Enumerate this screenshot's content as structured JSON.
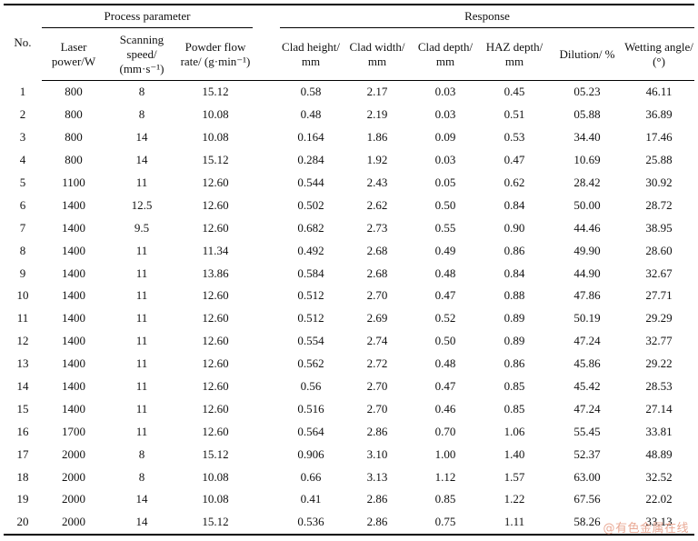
{
  "table": {
    "group_headers": {
      "process": "Process parameter",
      "response": "Response"
    },
    "columns": [
      "No.",
      "Laser power/W",
      "Scanning speed/ (mm·s⁻¹)",
      "Powder flow rate/ (g·min⁻¹)",
      "Clad height/ mm",
      "Clad width/ mm",
      "Clad depth/ mm",
      "HAZ depth/ mm",
      "Dilution/ %",
      "Wetting angle/ (°)"
    ],
    "rows": [
      [
        "1",
        "800",
        "8",
        "15.12",
        "0.58",
        "2.17",
        "0.03",
        "0.45",
        "05.23",
        "46.11"
      ],
      [
        "2",
        "800",
        "8",
        "10.08",
        "0.48",
        "2.19",
        "0.03",
        "0.51",
        "05.88",
        "36.89"
      ],
      [
        "3",
        "800",
        "14",
        "10.08",
        "0.164",
        "1.86",
        "0.09",
        "0.53",
        "34.40",
        "17.46"
      ],
      [
        "4",
        "800",
        "14",
        "15.12",
        "0.284",
        "1.92",
        "0.03",
        "0.47",
        "10.69",
        "25.88"
      ],
      [
        "5",
        "1100",
        "11",
        "12.60",
        "0.544",
        "2.43",
        "0.05",
        "0.62",
        "28.42",
        "30.92"
      ],
      [
        "6",
        "1400",
        "12.5",
        "12.60",
        "0.502",
        "2.62",
        "0.50",
        "0.84",
        "50.00",
        "28.72"
      ],
      [
        "7",
        "1400",
        "9.5",
        "12.60",
        "0.682",
        "2.73",
        "0.55",
        "0.90",
        "44.46",
        "38.95"
      ],
      [
        "8",
        "1400",
        "11",
        "11.34",
        "0.492",
        "2.68",
        "0.49",
        "0.86",
        "49.90",
        "28.60"
      ],
      [
        "9",
        "1400",
        "11",
        "13.86",
        "0.584",
        "2.68",
        "0.48",
        "0.84",
        "44.90",
        "32.67"
      ],
      [
        "10",
        "1400",
        "11",
        "12.60",
        "0.512",
        "2.70",
        "0.47",
        "0.88",
        "47.86",
        "27.71"
      ],
      [
        "11",
        "1400",
        "11",
        "12.60",
        "0.512",
        "2.69",
        "0.52",
        "0.89",
        "50.19",
        "29.29"
      ],
      [
        "12",
        "1400",
        "11",
        "12.60",
        "0.554",
        "2.74",
        "0.50",
        "0.89",
        "47.24",
        "32.77"
      ],
      [
        "13",
        "1400",
        "11",
        "12.60",
        "0.562",
        "2.72",
        "0.48",
        "0.86",
        "45.86",
        "29.22"
      ],
      [
        "14",
        "1400",
        "11",
        "12.60",
        "0.56",
        "2.70",
        "0.47",
        "0.85",
        "45.42",
        "28.53"
      ],
      [
        "15",
        "1400",
        "11",
        "12.60",
        "0.516",
        "2.70",
        "0.46",
        "0.85",
        "47.24",
        "27.14"
      ],
      [
        "16",
        "1700",
        "11",
        "12.60",
        "0.564",
        "2.86",
        "0.70",
        "1.06",
        "55.45",
        "33.81"
      ],
      [
        "17",
        "2000",
        "8",
        "15.12",
        "0.906",
        "3.10",
        "1.00",
        "1.40",
        "52.37",
        "48.89"
      ],
      [
        "18",
        "2000",
        "8",
        "10.08",
        "0.66",
        "3.13",
        "1.12",
        "1.57",
        "63.00",
        "32.52"
      ],
      [
        "19",
        "2000",
        "14",
        "10.08",
        "0.41",
        "2.86",
        "0.85",
        "1.22",
        "67.56",
        "22.02"
      ],
      [
        "20",
        "2000",
        "14",
        "15.12",
        "0.536",
        "2.86",
        "0.75",
        "1.11",
        "58.26",
        "33.13"
      ]
    ]
  },
  "watermark": "@有色金属在线"
}
